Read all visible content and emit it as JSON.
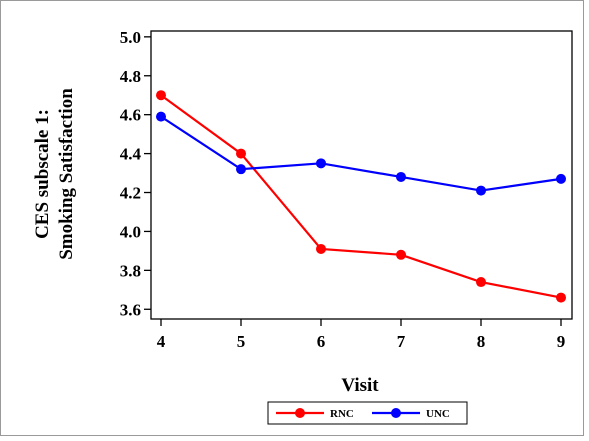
{
  "chart_data": {
    "type": "line",
    "title": "",
    "xlabel": "Visit",
    "ylabel_lines": [
      "CES subscale 1:",
      "Smoking Satisfaction"
    ],
    "x": [
      4,
      5,
      6,
      7,
      8,
      9
    ],
    "xlim": [
      4,
      9
    ],
    "ylim": [
      3.55,
      5.03
    ],
    "yticks": [
      3.6,
      3.8,
      4.0,
      4.2,
      4.4,
      4.6,
      4.8,
      5.0
    ],
    "ytick_labels": [
      "3.6",
      "3.8",
      "4.0",
      "4.2",
      "4.4",
      "4.6",
      "4.8",
      "5.0"
    ],
    "xtick_labels": [
      "4",
      "5",
      "6",
      "7",
      "8",
      "9"
    ],
    "grid": false,
    "legend_position": "bottom-center",
    "series": [
      {
        "name": "RNC",
        "color": "#ff0000",
        "values": [
          4.7,
          4.4,
          3.91,
          3.88,
          3.74,
          3.66
        ]
      },
      {
        "name": "UNC",
        "color": "#0000ff",
        "values": [
          4.59,
          4.32,
          4.35,
          4.28,
          4.21,
          4.27
        ]
      }
    ]
  }
}
